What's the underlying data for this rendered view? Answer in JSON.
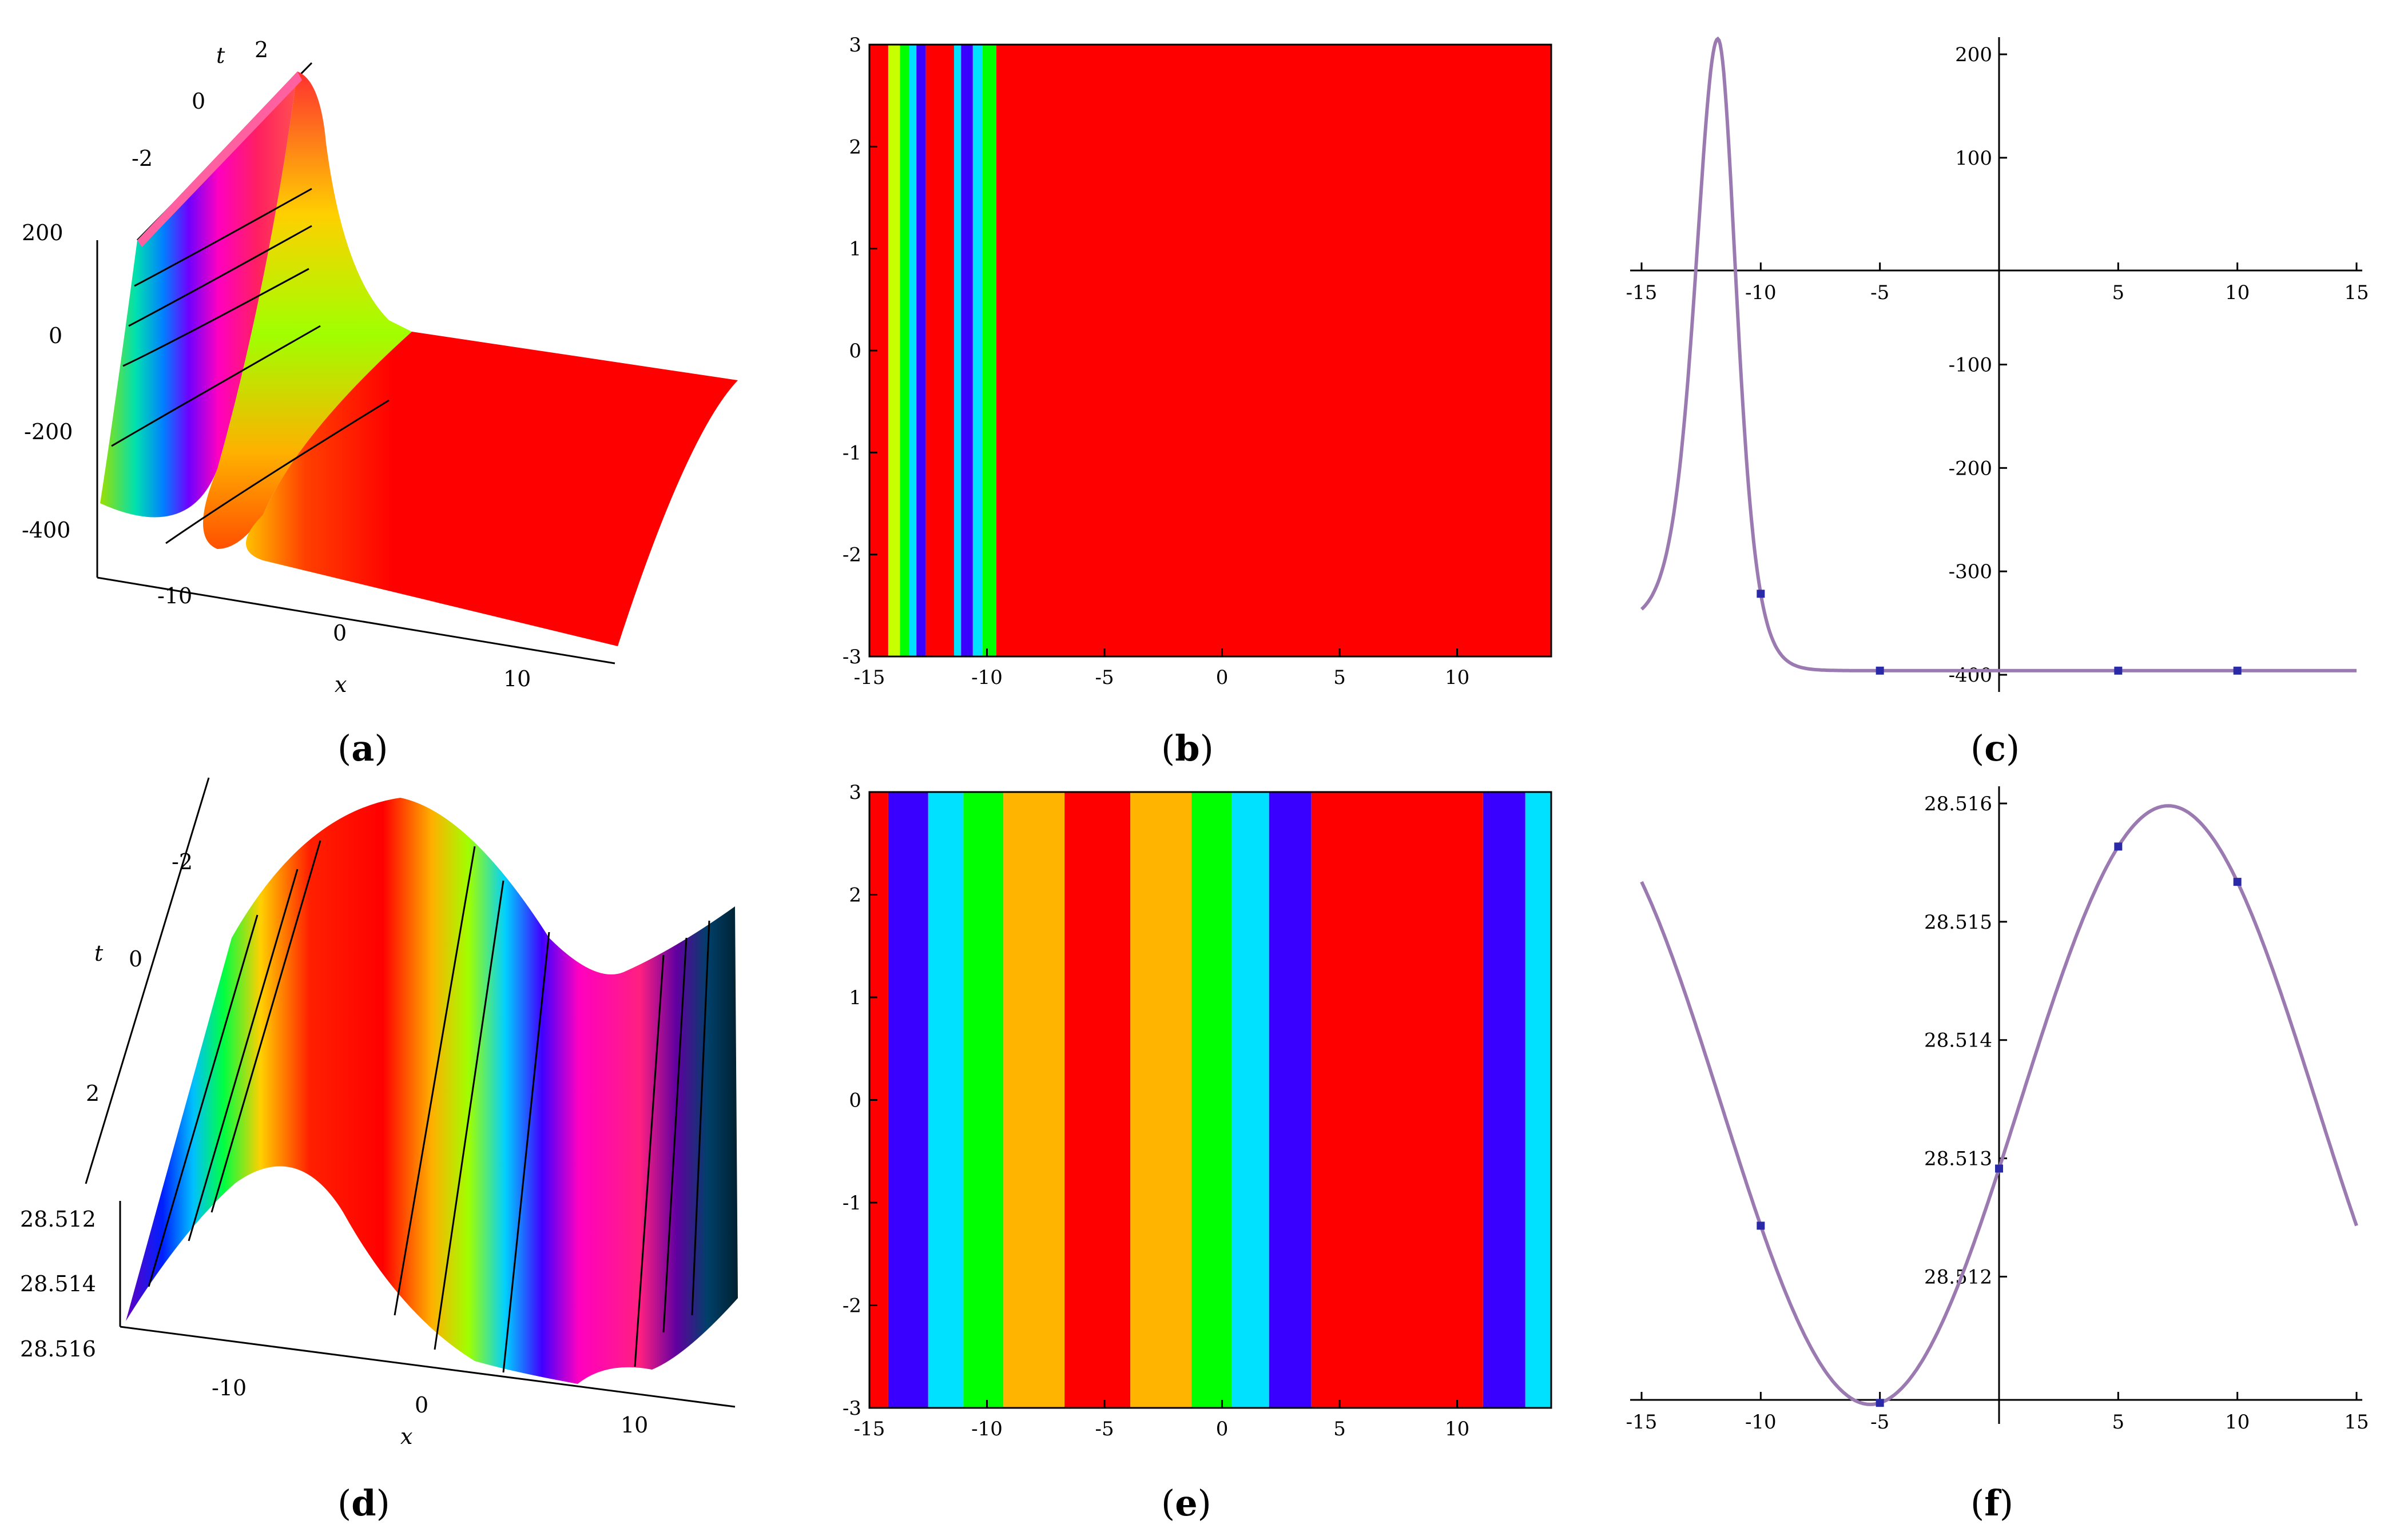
{
  "colors": {
    "red": "#ff0000",
    "blue": "#3a00ff",
    "cyan": "#00e0ff",
    "green": "#00ff00",
    "orange": "#ffb400",
    "yellowgreen": "#c8ff00",
    "curve": "#9a7ab0",
    "marker": "#2a2aa8"
  },
  "panels": {
    "a": {
      "caption_letter": "a",
      "type": "surface3d",
      "t_ticks": [
        "-2",
        "0",
        "2"
      ],
      "t_label": "t",
      "z_ticks": [
        "200",
        "0",
        "-200",
        "-400"
      ],
      "x_ticks": [
        "-10",
        "0",
        "10"
      ],
      "x_label": "x"
    },
    "b": {
      "caption_letter": "b",
      "type": "heatmap",
      "xlim": [
        -15,
        14
      ],
      "ylim": [
        -3,
        3
      ],
      "x_ticks": [
        "-15",
        "-10",
        "-5",
        "0",
        "5",
        "10"
      ],
      "y_ticks": [
        "3",
        "2",
        "1",
        "0",
        "-1",
        "-2",
        "-3"
      ],
      "bands": [
        {
          "from": -15,
          "to": -14.2,
          "color": "red"
        },
        {
          "from": -14.2,
          "to": -13.7,
          "color": "yellowgreen"
        },
        {
          "from": -13.7,
          "to": -13.3,
          "color": "green"
        },
        {
          "from": -13.3,
          "to": -13.0,
          "color": "cyan"
        },
        {
          "from": -13.0,
          "to": -12.6,
          "color": "blue"
        },
        {
          "from": -12.6,
          "to": -11.4,
          "color": "red"
        },
        {
          "from": -11.4,
          "to": -11.1,
          "color": "cyan"
        },
        {
          "from": -11.1,
          "to": -10.6,
          "color": "blue"
        },
        {
          "from": -10.6,
          "to": -10.2,
          "color": "cyan"
        },
        {
          "from": -10.2,
          "to": -9.6,
          "color": "green"
        },
        {
          "from": -9.6,
          "to": 14,
          "color": "red"
        }
      ]
    },
    "c": {
      "caption_letter": "c",
      "type": "line",
      "xlim": [
        -15,
        15
      ],
      "ylim": [
        -400,
        200
      ],
      "x_ticks": [
        "-15",
        "-10",
        "-5",
        "5",
        "10",
        "15"
      ],
      "y_ticks": [
        "200",
        "100",
        "-100",
        "-200",
        "-300",
        "-400"
      ],
      "peak_x": -11.8,
      "peak_y": 215,
      "baseline_y": -396,
      "start_y": -350,
      "markers_x": [
        -10,
        -5,
        5,
        10
      ]
    },
    "d": {
      "caption_letter": "d",
      "type": "surface3d",
      "t_ticks": [
        "-2",
        "0",
        "2"
      ],
      "t_label": "t",
      "z_ticks": [
        "28.512",
        "28.514",
        "28.516"
      ],
      "x_ticks": [
        "-10",
        "0",
        "10"
      ],
      "x_label": "x"
    },
    "e": {
      "caption_letter": "e",
      "type": "heatmap",
      "xlim": [
        -15,
        14
      ],
      "ylim": [
        -3,
        3
      ],
      "x_ticks": [
        "-15",
        "-10",
        "-5",
        "0",
        "5",
        "10"
      ],
      "y_ticks": [
        "3",
        "2",
        "1",
        "0",
        "-1",
        "-2",
        "-3"
      ],
      "bands": [
        {
          "from": -15,
          "to": -14.2,
          "color": "red"
        },
        {
          "from": -14.2,
          "to": -12.5,
          "color": "blue"
        },
        {
          "from": -12.5,
          "to": -11.0,
          "color": "cyan"
        },
        {
          "from": -11.0,
          "to": -9.3,
          "color": "green"
        },
        {
          "from": -9.3,
          "to": -6.7,
          "color": "orange"
        },
        {
          "from": -6.7,
          "to": -3.9,
          "color": "red"
        },
        {
          "from": -3.9,
          "to": -1.3,
          "color": "orange"
        },
        {
          "from": -1.3,
          "to": 0.4,
          "color": "green"
        },
        {
          "from": 0.4,
          "to": 2.0,
          "color": "cyan"
        },
        {
          "from": 2.0,
          "to": 3.8,
          "color": "blue"
        },
        {
          "from": 3.8,
          "to": 11.1,
          "color": "red"
        },
        {
          "from": 11.1,
          "to": 12.9,
          "color": "blue"
        },
        {
          "from": 12.9,
          "to": 14,
          "color": "cyan"
        }
      ]
    },
    "f": {
      "caption_letter": "f",
      "type": "line",
      "xlim": [
        -15,
        15
      ],
      "ylim": [
        28.5109,
        28.516
      ],
      "x_ticks": [
        "-15",
        "-10",
        "-5",
        "5",
        "10",
        "15"
      ],
      "y_ticks": [
        "28.516",
        "28.515",
        "28.514",
        "28.513",
        "28.512"
      ],
      "mean": 28.51345,
      "amplitude": 0.00253,
      "period": 25.0,
      "phase_x": -5.4,
      "markers_x": [
        -10,
        -5,
        0,
        5,
        10
      ]
    }
  }
}
